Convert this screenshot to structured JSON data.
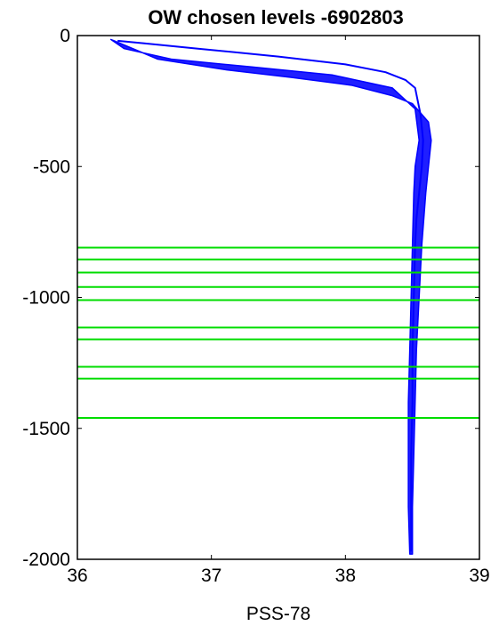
{
  "chart_data": {
    "type": "line",
    "title": "OW chosen levels -6902803",
    "xlabel": "PSS-78",
    "ylabel": "",
    "xlim": [
      36,
      39
    ],
    "ylim": [
      -2000,
      0
    ],
    "x_ticks": [
      {
        "value": 36,
        "label": "36"
      },
      {
        "value": 37,
        "label": "37"
      },
      {
        "value": 38,
        "label": "38"
      },
      {
        "value": 39,
        "label": "39"
      }
    ],
    "y_ticks": [
      {
        "value": 0,
        "label": "0"
      },
      {
        "value": -500,
        "label": "-500"
      },
      {
        "value": -1000,
        "label": "-1000"
      },
      {
        "value": -1500,
        "label": "-1500"
      },
      {
        "value": -2000,
        "label": "-2000"
      }
    ],
    "grid": false,
    "series": [
      {
        "color": "#0000ff",
        "x": [
          36.3,
          36.5,
          36.9,
          37.5,
          38.0,
          38.3,
          38.45,
          38.52,
          38.56,
          38.58,
          38.57,
          38.55,
          38.53,
          38.52,
          38.51,
          38.5,
          38.5,
          38.49,
          38.49,
          38.49
        ],
        "y": [
          -20,
          -30,
          -50,
          -80,
          -110,
          -140,
          -170,
          -200,
          -300,
          -400,
          -500,
          -600,
          -700,
          -800,
          -1000,
          -1200,
          -1400,
          -1600,
          -1800,
          -1970
        ]
      }
    ],
    "profile_envelope": {
      "color": "#0000ff",
      "x": [
        36.25,
        36.6,
        37.1,
        37.6,
        38.05,
        38.35,
        38.5,
        38.62,
        38.64,
        38.62,
        38.6,
        38.57,
        38.55,
        38.53,
        38.52,
        38.51,
        38.5,
        38.5,
        38.48,
        38.47,
        38.47,
        38.47,
        38.48,
        38.49,
        38.5,
        38.51,
        38.52,
        38.55,
        38.52,
        38.35,
        37.9,
        37.3,
        36.7,
        36.35,
        36.25
      ],
      "y": [
        -15,
        -90,
        -130,
        -160,
        -190,
        -230,
        -260,
        -330,
        -400,
        -500,
        -600,
        -800,
        -1000,
        -1200,
        -1400,
        -1600,
        -1800,
        -1980,
        -1980,
        -1800,
        -1600,
        -1400,
        -1200,
        -1000,
        -800,
        -600,
        -500,
        -400,
        -280,
        -200,
        -150,
        -120,
        -90,
        -50,
        -15
      ]
    },
    "chosen_levels": {
      "color": "#00dd00",
      "y": [
        -810,
        -855,
        -905,
        -960,
        -1010,
        -1115,
        -1160,
        -1265,
        -1310,
        -1460
      ]
    }
  }
}
